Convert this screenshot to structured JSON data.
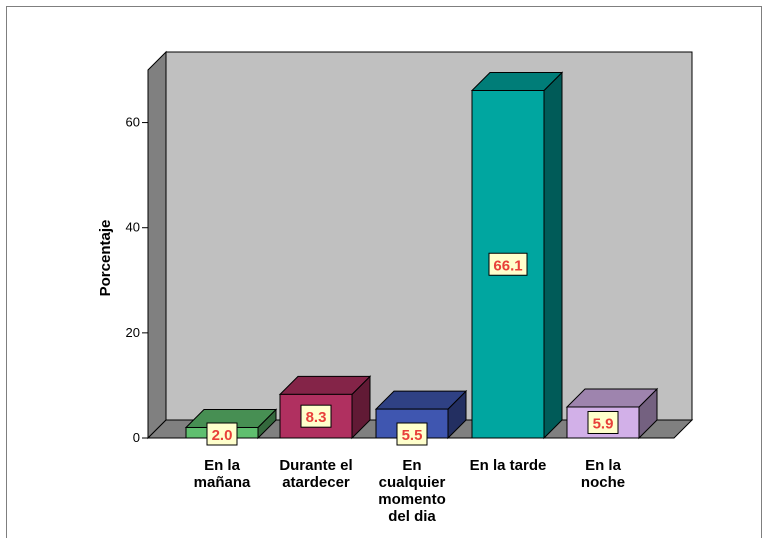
{
  "chart_data": {
    "type": "bar",
    "title": "",
    "xlabel": "",
    "ylabel": "Porcentaje",
    "ylim": [
      0,
      70
    ],
    "yticks": [
      0,
      20,
      40,
      60
    ],
    "grid": false,
    "legend": "none",
    "categories": [
      [
        "En la",
        "mañana"
      ],
      [
        "Durante el",
        "atardecer"
      ],
      [
        "En",
        "cualquier",
        "momento",
        "del dia"
      ],
      [
        "En la tarde"
      ],
      [
        "En la",
        "noche"
      ]
    ],
    "values": [
      2.0,
      8.3,
      5.5,
      66.1,
      5.9
    ],
    "data_labels": [
      "2.0",
      "8.3",
      "5.5",
      "66.1",
      "5.9"
    ],
    "colors": {
      "bars": [
        "#5fbf6f",
        "#b03060",
        "#3f56b0",
        "#00a6a0",
        "#d2b0e8"
      ],
      "backwall": "#c0c0c0",
      "label_bg": "#ffffcc",
      "label_text": "#e8403a"
    }
  }
}
